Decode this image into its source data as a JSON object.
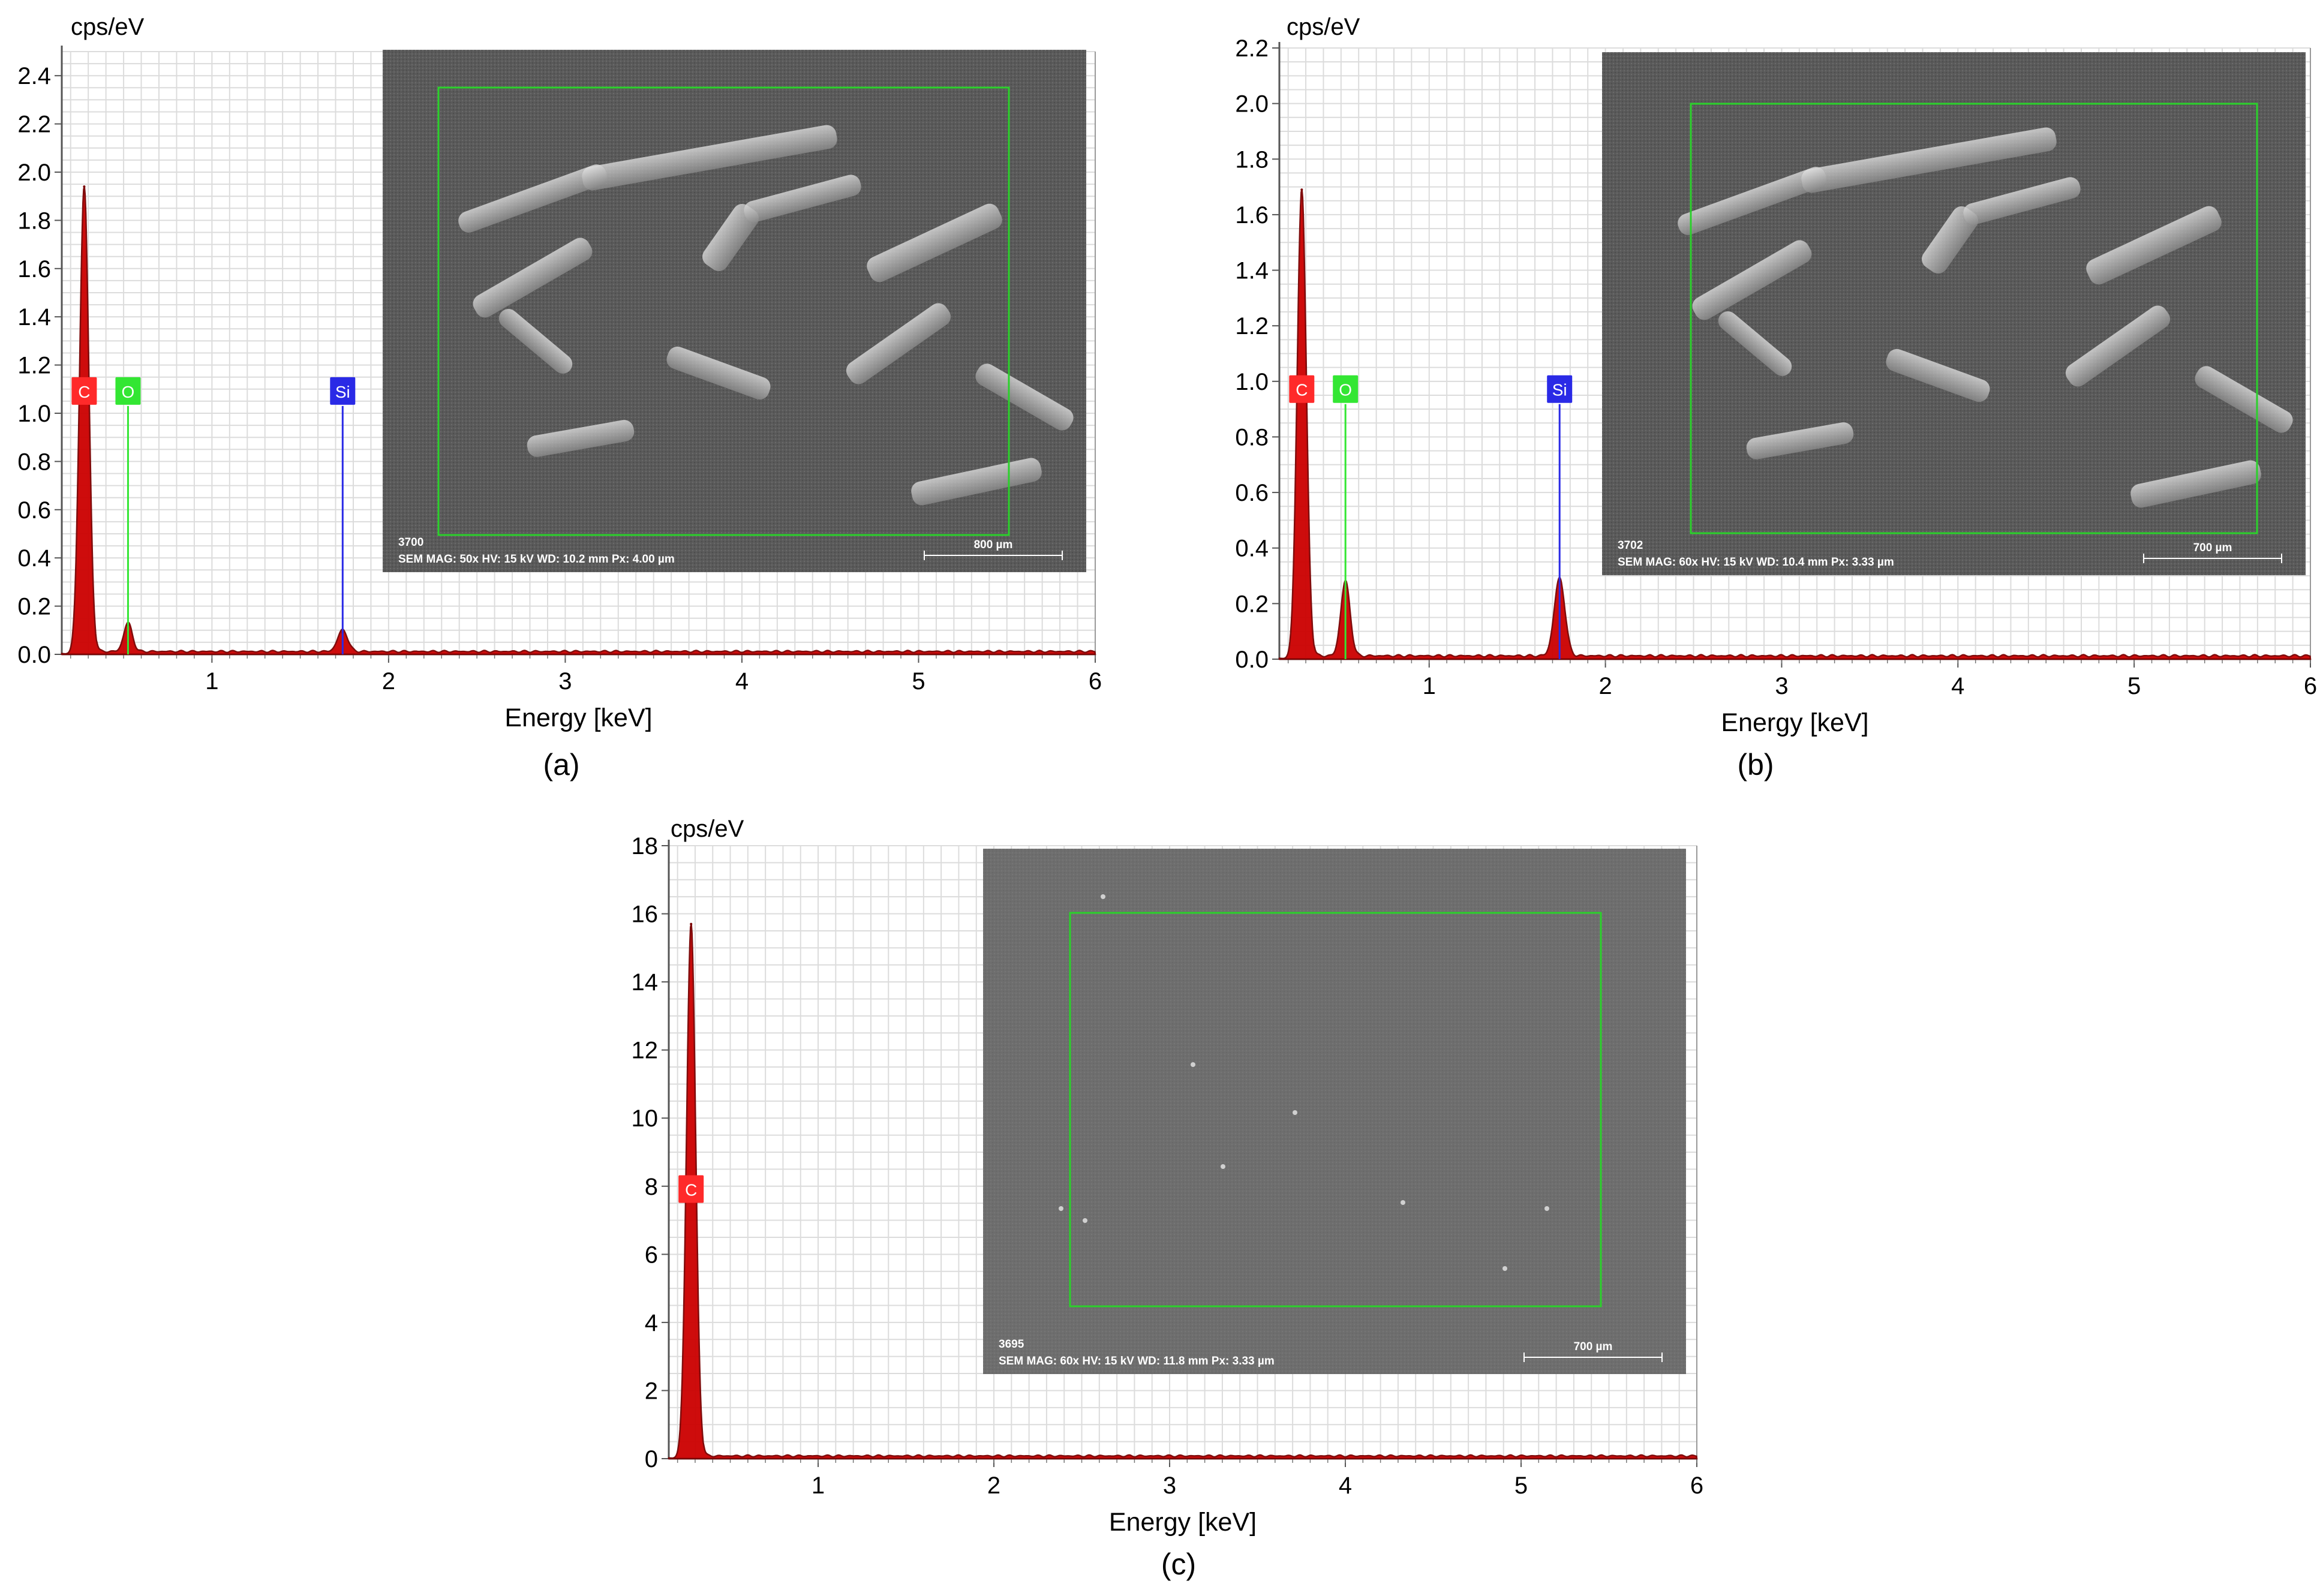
{
  "chart_data": [
    {
      "type": "area",
      "caption": "(a)",
      "xlabel": "Energy [keV]",
      "ylabel": "cps/eV",
      "xlim": [
        0.15,
        6.0
      ],
      "ylim": [
        0,
        2.5
      ],
      "x_ticks": [
        1,
        2,
        3,
        4,
        5,
        6
      ],
      "y_ticks": [
        "0.0",
        "0.2",
        "0.4",
        "0.6",
        "0.8",
        "1.0",
        "1.2",
        "1.4",
        "1.6",
        "1.8",
        "2.0",
        "2.2",
        "2.4"
      ],
      "series": [
        {
          "peaks": [
            {
              "x": 0.277,
              "y": 1.94,
              "width": 0.026
            },
            {
              "x": 0.525,
              "y": 0.12,
              "width": 0.024
            },
            {
              "x": 1.74,
              "y": 0.09,
              "width": 0.028
            }
          ],
          "baseline": 0.012,
          "color": "#cc0000"
        }
      ],
      "element_markers": [
        {
          "label": "C",
          "x": 0.277,
          "y": 1.09,
          "color": "#ff2a2a"
        },
        {
          "label": "O",
          "x": 0.525,
          "y": 1.09,
          "color": "#33e633"
        },
        {
          "label": "Si",
          "x": 1.74,
          "y": 1.09,
          "color": "#2a2ae6"
        }
      ],
      "sem_inset": {
        "id_text": "3700",
        "info_text": "SEM    MAG: 50x    HV: 15 kV    WD: 10.2 mm    Px: 4.00 µm",
        "scale_text": "800 µm"
      }
    },
    {
      "type": "area",
      "caption": "(b)",
      "xlabel": "Energy [keV]",
      "ylabel": "cps/eV",
      "xlim": [
        0.15,
        6.0
      ],
      "ylim": [
        0,
        2.2
      ],
      "x_ticks": [
        1,
        2,
        3,
        4,
        5,
        6
      ],
      "y_ticks": [
        "0.0",
        "0.2",
        "0.4",
        "0.6",
        "0.8",
        "1.0",
        "1.2",
        "1.4",
        "1.6",
        "1.8",
        "2.0",
        "2.2"
      ],
      "series": [
        {
          "peaks": [
            {
              "x": 0.277,
              "y": 1.69,
              "width": 0.026
            },
            {
              "x": 0.525,
              "y": 0.27,
              "width": 0.026
            },
            {
              "x": 1.74,
              "y": 0.28,
              "width": 0.03
            }
          ],
          "baseline": 0.012,
          "color": "#cc0000"
        }
      ],
      "element_markers": [
        {
          "label": "C",
          "x": 0.277,
          "y": 0.97,
          "color": "#ff2a2a"
        },
        {
          "label": "O",
          "x": 0.525,
          "y": 0.97,
          "color": "#33e633"
        },
        {
          "label": "Si",
          "x": 1.74,
          "y": 0.97,
          "color": "#2a2ae6"
        }
      ],
      "sem_inset": {
        "id_text": "3702",
        "info_text": "SEM    MAG: 60x    HV: 15 kV    WD: 10.4 mm    Px: 3.33 µm",
        "scale_text": "700 µm"
      }
    },
    {
      "type": "area",
      "caption": "(c)",
      "xlabel": "Energy [keV]",
      "ylabel": "cps/eV",
      "xlim": [
        0.15,
        6.0
      ],
      "ylim": [
        0,
        18
      ],
      "x_ticks": [
        1,
        2,
        3,
        4,
        5,
        6
      ],
      "y_ticks": [
        "0",
        "2",
        "4",
        "6",
        "8",
        "10",
        "12",
        "14",
        "16",
        "18"
      ],
      "series": [
        {
          "peaks": [
            {
              "x": 0.277,
              "y": 15.7,
              "width": 0.026
            }
          ],
          "baseline": 0.08,
          "color": "#cc0000"
        }
      ],
      "element_markers": [
        {
          "label": "C",
          "x": 0.277,
          "y": 7.9,
          "color": "#ff2a2a"
        }
      ],
      "sem_inset": {
        "id_text": "3695",
        "info_text": "SEM    MAG: 60x    HV: 15 kV    WD: 11.8 mm    Px: 3.33 µm",
        "scale_text": "700 µm"
      }
    }
  ]
}
